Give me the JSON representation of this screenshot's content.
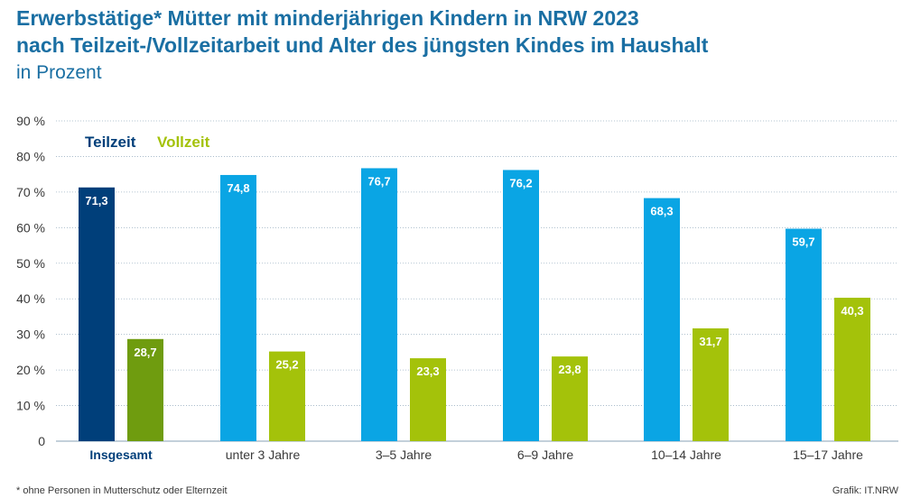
{
  "title_line1": "Erwerbstätige* Mütter mit minderjährigen Kindern in NRW 2023",
  "title_line2": "nach Teilzeit-/Vollzeitarbeit und Alter des jüngsten Kindes im Haushalt",
  "subtitle": "in Prozent",
  "footnote": "*  ohne Personen in Mutterschutz oder Elternzeit",
  "source": "Grafik: IT.NRW",
  "colors": {
    "title": "#1a6fa3",
    "teilzeit_total": "#003f7a",
    "vollzeit_total": "#6f9c0f",
    "teilzeit": "#0aa5e4",
    "vollzeit": "#a4c20a",
    "legend_teilzeit": "#003f7a",
    "legend_vollzeit": "#a4c20a",
    "grid": "#9fb3c4",
    "axis_text": "#3a3a3a"
  },
  "chart_data": {
    "type": "bar",
    "categories": [
      "Insgesamt",
      "unter 3 Jahre",
      "3–5 Jahre",
      "6–9 Jahre",
      "10–14 Jahre",
      "15–17 Jahre"
    ],
    "series": [
      {
        "name": "Teilzeit",
        "values": [
          71.3,
          74.8,
          76.7,
          76.2,
          68.3,
          59.7
        ],
        "labels": [
          "71,3",
          "74,8",
          "76,7",
          "76,2",
          "68,3",
          "59,7"
        ]
      },
      {
        "name": "Vollzeit",
        "values": [
          28.7,
          25.2,
          23.3,
          23.8,
          31.7,
          40.3
        ],
        "labels": [
          "28,7",
          "25,2",
          "23,3",
          "23,8",
          "31,7",
          "40,3"
        ]
      }
    ],
    "yticks": [
      "0",
      "10 %",
      "20 %",
      "30 %",
      "40 %",
      "50 %",
      "60 %",
      "70 %",
      "80 %",
      "90 %"
    ],
    "ylim": [
      0,
      90
    ],
    "grid": true,
    "legend_position": "top-left",
    "highlight_first_category": true
  }
}
